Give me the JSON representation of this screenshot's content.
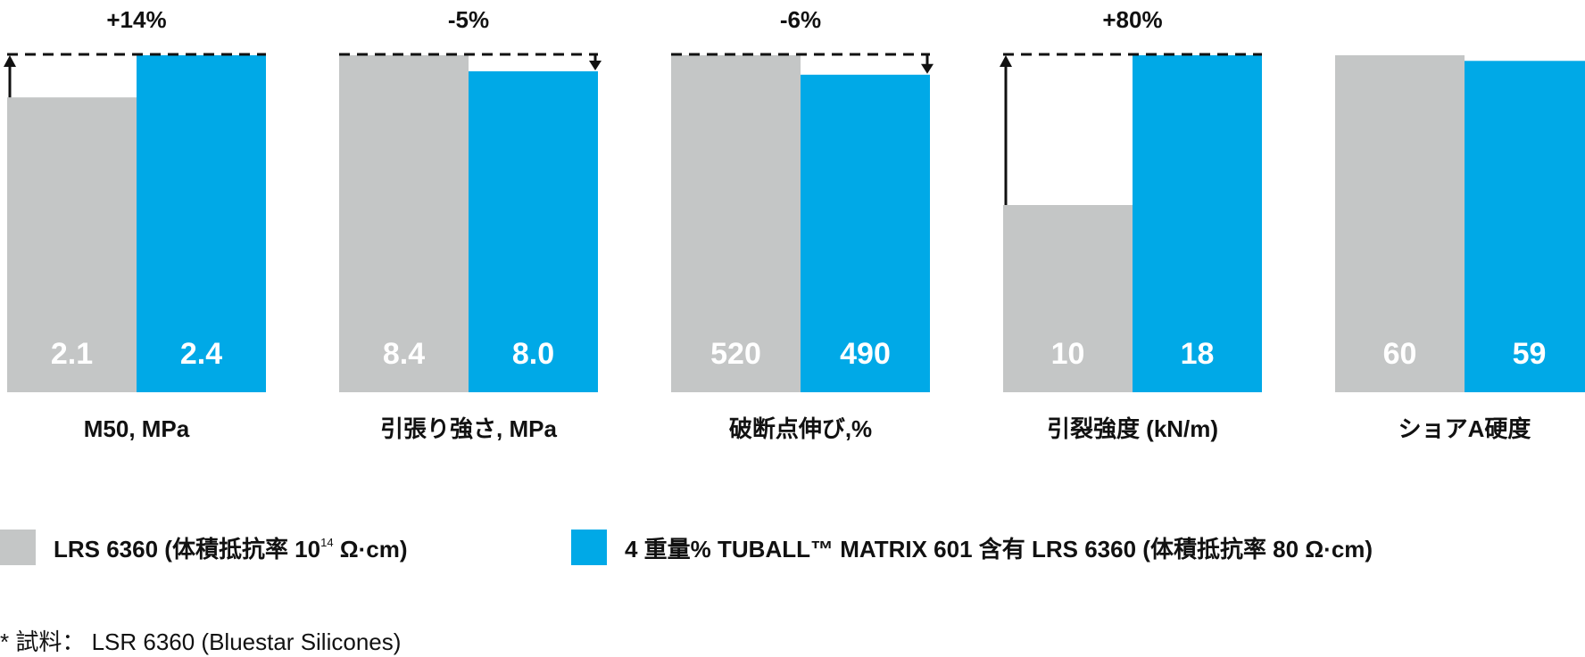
{
  "chart_data": {
    "type": "bar",
    "categories": [
      "M50, MPa",
      "引張り強さ, MPa",
      "破断点伸び,%",
      "引裂強度 (kN/m)",
      "ショアA硬度"
    ],
    "series": [
      {
        "name": "LRS 6360 (体積抵抗率 10¹⁴ Ω·cm)",
        "values": [
          2.1,
          8.4,
          520,
          10,
          60
        ],
        "value_labels": [
          "2.1",
          "8.4",
          "520",
          "10",
          "60"
        ]
      },
      {
        "name": "4 重量% TUBALL™ MATRIX 601 含有 LRS 6360  (体積抵抗率 80 Ω·cm)",
        "values": [
          2.4,
          8.0,
          490,
          18,
          59
        ],
        "value_labels": [
          "2.4",
          "8.0",
          "490",
          "18",
          "59"
        ]
      }
    ],
    "changes": [
      "+14%",
      "-5%",
      "-6%",
      "+80%",
      null
    ],
    "colors": {
      "series1": "#c4c6c6",
      "series2": "#00a9e7",
      "text": "#111111",
      "value_text": "#ffffff"
    }
  },
  "legend": {
    "item1": {
      "label_main": "LRS 6360 (体積抵抗率 10",
      "label_sup": "14",
      "label_tail": " Ω·cm)"
    },
    "item2": {
      "label": "4 重量% TUBALL™ MATRIX 601 含有 LRS 6360  (体積抵抗率 80 Ω·cm)"
    }
  },
  "footnote": "* 試料： LSR 6360 (Bluestar Silicones)"
}
